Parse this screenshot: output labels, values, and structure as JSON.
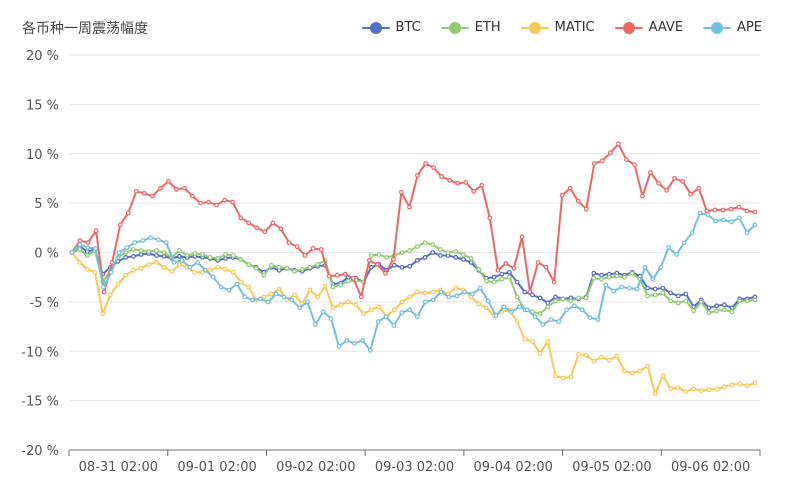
{
  "chart_data": {
    "type": "line",
    "title": "各币种一周震荡幅度",
    "ylim": [
      -20,
      20
    ],
    "ytick_step": 5,
    "y_ticks": [
      "20 %",
      "15 %",
      "10 %",
      "5 %",
      "0 %",
      "-5 %",
      "-10 %",
      "-15 %",
      "-20 %"
    ],
    "x_ticks": [
      "08-31 02:00",
      "09-01 02:00",
      "09-02 02:00",
      "09-03 02:00",
      "09-04 02:00",
      "09-05 02:00",
      "09-06 02:00"
    ],
    "grid": "horizontal",
    "legend_position": "top-right",
    "series": [
      {
        "name": "BTC",
        "color": "#5470c6",
        "values": [
          0,
          0.6,
          0.1,
          0.3,
          -2.2,
          -1.5,
          -0.9,
          -0.5,
          -0.4,
          -0.2,
          -0.1,
          -0.3,
          -0.4,
          -0.6,
          -0.4,
          -0.5,
          -0.4,
          -0.5,
          -0.6,
          -0.8,
          -0.6,
          -0.5,
          -0.7,
          -1.2,
          -1.5,
          -2.0,
          -1.5,
          -1.8,
          -1.6,
          -1.8,
          -1.9,
          -1.6,
          -1.4,
          -1.3,
          -3.2,
          -3.1,
          -2.5,
          -2.6,
          -3.0,
          -1.5,
          -1.2,
          -1.8,
          -1.3,
          -1.5,
          -1.4,
          -0.8,
          -0.5,
          0.0,
          -0.3,
          -0.3,
          -0.5,
          -0.7,
          -1.0,
          -1.8,
          -2.6,
          -2.5,
          -2.2,
          -2.0,
          -3.0,
          -4.0,
          -4.3,
          -4.6,
          -5.1,
          -4.5,
          -4.7,
          -4.6,
          -4.7,
          -4.5,
          -2.1,
          -2.3,
          -2.2,
          -2.1,
          -2.3,
          -2.0,
          -2.4,
          -3.6,
          -3.7,
          -3.6,
          -4.1,
          -4.4,
          -4.2,
          -5.5,
          -4.8,
          -5.6,
          -5.4,
          -5.3,
          -5.6,
          -4.7,
          -4.7,
          -4.5
        ]
      },
      {
        "name": "ETH",
        "color": "#91cc75",
        "values": [
          0,
          0.3,
          -0.3,
          0.2,
          -3.0,
          -1.8,
          -0.5,
          0.0,
          0.3,
          0.2,
          0.1,
          0.2,
          0.0,
          -0.5,
          0.2,
          -0.3,
          -0.1,
          -0.2,
          -0.5,
          -0.6,
          -0.2,
          -0.3,
          -0.7,
          -1.2,
          -1.6,
          -2.3,
          -1.3,
          -1.5,
          -1.6,
          -1.9,
          -1.7,
          -1.5,
          -1.2,
          -0.8,
          -3.5,
          -3.3,
          -2.9,
          -2.8,
          -3.0,
          -0.3,
          -0.2,
          -0.5,
          -0.3,
          0.0,
          0.2,
          0.6,
          1.0,
          0.8,
          0.3,
          0.0,
          0.1,
          -0.2,
          -0.6,
          -1.7,
          -2.9,
          -3.0,
          -2.7,
          -2.5,
          -4.5,
          -5.8,
          -6.0,
          -6.2,
          -5.5,
          -4.9,
          -4.7,
          -4.9,
          -4.6,
          -4.6,
          -2.6,
          -2.7,
          -2.5,
          -2.4,
          -2.5,
          -2.1,
          -2.7,
          -4.4,
          -4.3,
          -4.1,
          -4.9,
          -5.1,
          -4.9,
          -5.9,
          -5.0,
          -6.1,
          -5.9,
          -5.8,
          -6.0,
          -4.9,
          -4.9,
          -4.8
        ]
      },
      {
        "name": "MATIC",
        "color": "#fac858",
        "values": [
          0,
          -1.0,
          -1.7,
          -2.0,
          -6.2,
          -4.3,
          -3.2,
          -2.3,
          -1.8,
          -1.6,
          -1.2,
          -1.0,
          -1.5,
          -1.9,
          -1.2,
          -1.5,
          -2.0,
          -2.0,
          -1.8,
          -1.5,
          -1.7,
          -2.0,
          -3.0,
          -3.5,
          -4.8,
          -4.5,
          -4.2,
          -3.7,
          -4.8,
          -4.3,
          -5.2,
          -3.8,
          -4.5,
          -3.4,
          -5.6,
          -5.3,
          -5.0,
          -5.3,
          -6.2,
          -5.8,
          -5.5,
          -6.5,
          -5.8,
          -5.0,
          -4.5,
          -4.0,
          -4.1,
          -4.0,
          -3.8,
          -4.2,
          -3.6,
          -3.8,
          -4.5,
          -5.2,
          -5.6,
          -6.4,
          -6.0,
          -5.8,
          -7.0,
          -8.8,
          -9.0,
          -10.2,
          -9.0,
          -12.5,
          -12.7,
          -12.6,
          -10.3,
          -10.4,
          -11.0,
          -10.6,
          -10.9,
          -10.5,
          -12.0,
          -12.2,
          -12.0,
          -11.5,
          -14.3,
          -12.5,
          -13.8,
          -13.7,
          -14.1,
          -13.8,
          -14.0,
          -13.9,
          -13.8,
          -13.6,
          -13.4,
          -13.3,
          -13.5,
          -13.2
        ]
      },
      {
        "name": "AAVE",
        "color": "#ee6666",
        "values": [
          0,
          1.2,
          1.0,
          2.2,
          -4.0,
          -1.0,
          2.8,
          4.0,
          6.2,
          6.0,
          5.7,
          6.5,
          7.2,
          6.4,
          6.5,
          5.7,
          5.0,
          5.1,
          4.8,
          5.3,
          5.1,
          3.5,
          3.0,
          2.5,
          2.1,
          3.0,
          2.4,
          1.0,
          0.6,
          -0.3,
          0.4,
          0.3,
          -2.4,
          -2.3,
          -2.2,
          -2.6,
          -4.5,
          -0.8,
          -1.2,
          -2.1,
          -0.7,
          6.1,
          4.6,
          7.8,
          9.0,
          8.6,
          7.7,
          7.3,
          7.0,
          7.1,
          6.2,
          6.8,
          3.5,
          -1.8,
          -1.1,
          -1.6,
          1.6,
          -4.0,
          -1.0,
          -1.5,
          -3.0,
          5.8,
          6.5,
          5.2,
          4.4,
          9.0,
          9.3,
          10.1,
          11.0,
          9.4,
          8.9,
          5.7,
          8.1,
          7.0,
          6.3,
          7.5,
          7.2,
          5.9,
          6.5,
          4.2,
          4.3,
          4.3,
          4.4,
          4.6,
          4.2,
          4.1
        ]
      },
      {
        "name": "APE",
        "color": "#73c0de",
        "values": [
          0,
          0.8,
          0.5,
          0.4,
          -3.5,
          -2.0,
          0.0,
          0.5,
          1.0,
          1.2,
          1.5,
          1.3,
          1.0,
          -1.0,
          -0.8,
          -1.5,
          -1.0,
          -1.8,
          -2.5,
          -3.5,
          -3.8,
          -3.2,
          -4.5,
          -4.8,
          -4.7,
          -5.0,
          -4.2,
          -4.5,
          -4.8,
          -5.6,
          -5.0,
          -7.3,
          -6.0,
          -6.7,
          -9.5,
          -8.9,
          -9.2,
          -8.9,
          -9.9,
          -7.0,
          -6.5,
          -7.4,
          -6.1,
          -5.8,
          -6.5,
          -5.0,
          -4.8,
          -4.0,
          -4.5,
          -4.4,
          -4.0,
          -4.2,
          -3.6,
          -4.9,
          -6.4,
          -5.5,
          -6.0,
          -5.5,
          -5.8,
          -6.5,
          -7.3,
          -6.8,
          -7.0,
          -5.8,
          -5.4,
          -5.8,
          -6.6,
          -6.8,
          -3.3,
          -3.9,
          -3.5,
          -3.6,
          -3.7,
          -1.5,
          -2.7,
          -1.5,
          0.5,
          -0.2,
          1.0,
          2.0,
          4.0,
          3.8,
          3.2,
          3.3,
          3.1,
          3.5,
          2.0,
          2.8
        ]
      }
    ]
  }
}
